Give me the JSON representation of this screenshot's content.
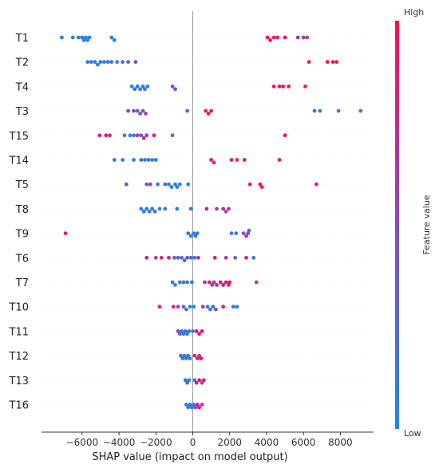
{
  "chart_data": {
    "type": "scatter",
    "subtype": "shap-beeswarm",
    "title": "",
    "xlabel": "SHAP value (impact on model output)",
    "xlim": [
      -8200,
      9800
    ],
    "xticks": [
      -6000,
      -4000,
      -2000,
      0,
      2000,
      4000,
      6000,
      8000
    ],
    "xtick_labels": [
      "−6000",
      "−4000",
      "−2000",
      "0",
      "2000",
      "4000",
      "6000",
      "8000"
    ],
    "zero_line": true,
    "grid": false,
    "colorbar": {
      "label": "Feature value",
      "high_label": "High",
      "low_label": "Low",
      "low_color": "#1e88e5",
      "high_color": "#ff0d57"
    },
    "features": [
      {
        "name": "T1",
        "points": [
          [
            -7100,
            0.05
          ],
          [
            -6500,
            0.05
          ],
          [
            -6200,
            -0.05
          ],
          [
            -6000,
            0.1
          ],
          [
            -5900,
            0.15
          ],
          [
            -5800,
            0.05
          ],
          [
            -5700,
            -0.05
          ],
          [
            -5600,
            0.1
          ],
          [
            -4400,
            0.05
          ],
          [
            -4250,
            -0.05
          ],
          [
            4050,
            0.95
          ],
          [
            4200,
            0.9
          ],
          [
            4400,
            0.92
          ],
          [
            4600,
            0.88
          ],
          [
            5000,
            0.95
          ],
          [
            5700,
            0.75
          ],
          [
            6000,
            0.6
          ],
          [
            6200,
            0.55
          ]
        ]
      },
      {
        "name": "T2",
        "points": [
          [
            -5700,
            0.05
          ],
          [
            -5500,
            0.05
          ],
          [
            -5300,
            0.08
          ],
          [
            -5150,
            0.1
          ],
          [
            -5000,
            0.05
          ],
          [
            -4800,
            0.1
          ],
          [
            -4600,
            0.12
          ],
          [
            -4400,
            0.05
          ],
          [
            -4100,
            0.15
          ],
          [
            -3800,
            0.2
          ],
          [
            -3500,
            0.3
          ],
          [
            -3100,
            0.55
          ],
          [
            6300,
            0.95
          ],
          [
            7300,
            0.98
          ],
          [
            7600,
            0.95
          ],
          [
            7800,
            0.9
          ]
        ]
      },
      {
        "name": "T4",
        "points": [
          [
            -3300,
            0.05
          ],
          [
            -3150,
            0.1
          ],
          [
            -3000,
            0.08
          ],
          [
            -2850,
            0.05
          ],
          [
            -2700,
            0.1
          ],
          [
            -2600,
            0.05
          ],
          [
            -2450,
            0.15
          ],
          [
            -1100,
            0.5
          ],
          [
            -950,
            0.45
          ],
          [
            4400,
            0.9
          ],
          [
            4700,
            0.95
          ],
          [
            4900,
            0.92
          ],
          [
            5200,
            0.88
          ],
          [
            6100,
            0.95
          ]
        ]
      },
      {
        "name": "T3",
        "points": [
          [
            -3500,
            0.6
          ],
          [
            -3200,
            0.5
          ],
          [
            -3000,
            0.45
          ],
          [
            -2850,
            0.35
          ],
          [
            -2700,
            0.3
          ],
          [
            -2550,
            0.55
          ],
          [
            -300,
            0.1
          ],
          [
            700,
            0.9
          ],
          [
            850,
            0.95
          ],
          [
            1000,
            0.92
          ],
          [
            6600,
            0.1
          ],
          [
            6900,
            0.08
          ],
          [
            7900,
            0.05
          ],
          [
            9100,
            0.05
          ]
        ]
      },
      {
        "name": "T15",
        "points": [
          [
            -5050,
            0.9
          ],
          [
            -4700,
            0.85
          ],
          [
            -4500,
            0.7
          ],
          [
            -3700,
            0.1
          ],
          [
            -3400,
            0.05
          ],
          [
            -3200,
            0.15
          ],
          [
            -3000,
            0.6
          ],
          [
            -2800,
            0.4
          ],
          [
            -2650,
            0.8
          ],
          [
            -2500,
            0.55
          ],
          [
            -2100,
            0.9
          ],
          [
            -1100,
            0.1
          ],
          [
            5000,
            0.95
          ]
        ]
      },
      {
        "name": "T14",
        "points": [
          [
            -4250,
            0.05
          ],
          [
            -3800,
            0.1
          ],
          [
            -3200,
            0.05
          ],
          [
            -2800,
            0.1
          ],
          [
            -2600,
            0.12
          ],
          [
            -2400,
            0.08
          ],
          [
            -2200,
            0.05
          ],
          [
            -2000,
            0.15
          ],
          [
            1000,
            0.95
          ],
          [
            1150,
            0.7
          ],
          [
            2100,
            0.9
          ],
          [
            2400,
            0.85
          ],
          [
            2800,
            0.95
          ],
          [
            4700,
            0.88
          ]
        ]
      },
      {
        "name": "T5",
        "points": [
          [
            -3600,
            0.4
          ],
          [
            -2500,
            0.3
          ],
          [
            -2300,
            0.6
          ],
          [
            -1900,
            0.2
          ],
          [
            -1500,
            0.1
          ],
          [
            -1300,
            0.05
          ],
          [
            -1150,
            0.1
          ],
          [
            -950,
            0.08
          ],
          [
            -850,
            0.15
          ],
          [
            -700,
            0.05
          ],
          [
            -250,
            0.1
          ],
          [
            3100,
            0.9
          ],
          [
            3650,
            0.95
          ],
          [
            3750,
            0.92
          ],
          [
            6700,
            0.88
          ]
        ]
      },
      {
        "name": "T8",
        "points": [
          [
            -2800,
            0.05
          ],
          [
            -2650,
            0.1
          ],
          [
            -2500,
            0.08
          ],
          [
            -2350,
            0.05
          ],
          [
            -2200,
            0.1
          ],
          [
            -2050,
            0.15
          ],
          [
            -1800,
            0.05
          ],
          [
            -1500,
            0.1
          ],
          [
            -850,
            0.1
          ],
          [
            -100,
            0.1
          ],
          [
            750,
            0.9
          ],
          [
            1300,
            0.6
          ],
          [
            1650,
            0.7
          ],
          [
            1800,
            0.5
          ],
          [
            1950,
            0.6
          ]
        ]
      },
      {
        "name": "T9",
        "points": [
          [
            -6900,
            0.9
          ],
          [
            -250,
            0.1
          ],
          [
            -100,
            0.05
          ],
          [
            50,
            0.1
          ],
          [
            150,
            0.08
          ],
          [
            250,
            0.12
          ],
          [
            2100,
            0.1
          ],
          [
            2350,
            0.15
          ],
          [
            2750,
            0.5
          ],
          [
            2900,
            0.7
          ],
          [
            3000,
            0.6
          ],
          [
            3050,
            0.2
          ]
        ]
      },
      {
        "name": "T6",
        "points": [
          [
            -2500,
            0.9
          ],
          [
            -2000,
            0.6
          ],
          [
            -1700,
            0.85
          ],
          [
            -1300,
            0.9
          ],
          [
            -1000,
            0.3
          ],
          [
            -800,
            0.2
          ],
          [
            -600,
            0.25
          ],
          [
            -450,
            0.1
          ],
          [
            -300,
            0.5
          ],
          [
            -100,
            0.1
          ],
          [
            100,
            0.1
          ],
          [
            300,
            0.8
          ],
          [
            1200,
            0.9
          ],
          [
            1800,
            0.6
          ],
          [
            2300,
            0.2
          ],
          [
            2900,
            0.85
          ],
          [
            3300,
            0.1
          ]
        ]
      },
      {
        "name": "T7",
        "points": [
          [
            -1100,
            0.1
          ],
          [
            -950,
            0.05
          ],
          [
            -700,
            0.08
          ],
          [
            -500,
            0.1
          ],
          [
            -300,
            0.05
          ],
          [
            -50,
            0.1
          ],
          [
            650,
            0.7
          ],
          [
            900,
            0.9
          ],
          [
            1050,
            0.7
          ],
          [
            1150,
            0.5
          ],
          [
            1300,
            0.85
          ],
          [
            1500,
            0.9
          ],
          [
            1650,
            0.95
          ],
          [
            1800,
            0.9
          ],
          [
            1950,
            0.85
          ],
          [
            2000,
            0.92
          ],
          [
            3450,
            0.7
          ]
        ]
      },
      {
        "name": "T10",
        "points": [
          [
            -1800,
            0.9
          ],
          [
            -1050,
            0.85
          ],
          [
            -800,
            0.6
          ],
          [
            -500,
            0.3
          ],
          [
            -350,
            0.15
          ],
          [
            -150,
            0.1
          ],
          [
            50,
            0.1
          ],
          [
            550,
            0.65
          ],
          [
            800,
            0.1
          ],
          [
            950,
            0.2
          ],
          [
            1100,
            0.15
          ],
          [
            1250,
            0.5
          ],
          [
            1650,
            0.85
          ],
          [
            2200,
            0.15
          ],
          [
            2400,
            0.1
          ]
        ]
      },
      {
        "name": "T11",
        "points": [
          [
            -800,
            0.5
          ],
          [
            -700,
            0.3
          ],
          [
            -600,
            0.2
          ],
          [
            -500,
            0.1
          ],
          [
            -400,
            0.15
          ],
          [
            -300,
            0.05
          ],
          [
            -200,
            0.12
          ],
          [
            0,
            0.1
          ],
          [
            200,
            0.92
          ],
          [
            350,
            0.9
          ],
          [
            500,
            0.95
          ]
        ]
      },
      {
        "name": "T12",
        "points": [
          [
            -650,
            0.15
          ],
          [
            -550,
            0.1
          ],
          [
            -450,
            0.05
          ],
          [
            -350,
            0.12
          ],
          [
            -250,
            0.1
          ],
          [
            -150,
            0.08
          ],
          [
            100,
            0.9
          ],
          [
            250,
            0.95
          ],
          [
            350,
            0.6
          ],
          [
            450,
            0.92
          ]
        ]
      },
      {
        "name": "T13",
        "points": [
          [
            -400,
            0.1
          ],
          [
            -300,
            0.15
          ],
          [
            -200,
            0.05
          ],
          [
            100,
            0.1
          ],
          [
            200,
            0.9
          ],
          [
            350,
            0.95
          ],
          [
            500,
            0.5
          ],
          [
            600,
            0.92
          ]
        ]
      },
      {
        "name": "T16",
        "points": [
          [
            -350,
            0.1
          ],
          [
            -250,
            0.05
          ],
          [
            -150,
            0.1
          ],
          [
            -50,
            0.08
          ],
          [
            50,
            0.15
          ],
          [
            150,
            0.5
          ],
          [
            250,
            0.9
          ],
          [
            350,
            0.85
          ],
          [
            500,
            0.6
          ]
        ]
      }
    ]
  }
}
